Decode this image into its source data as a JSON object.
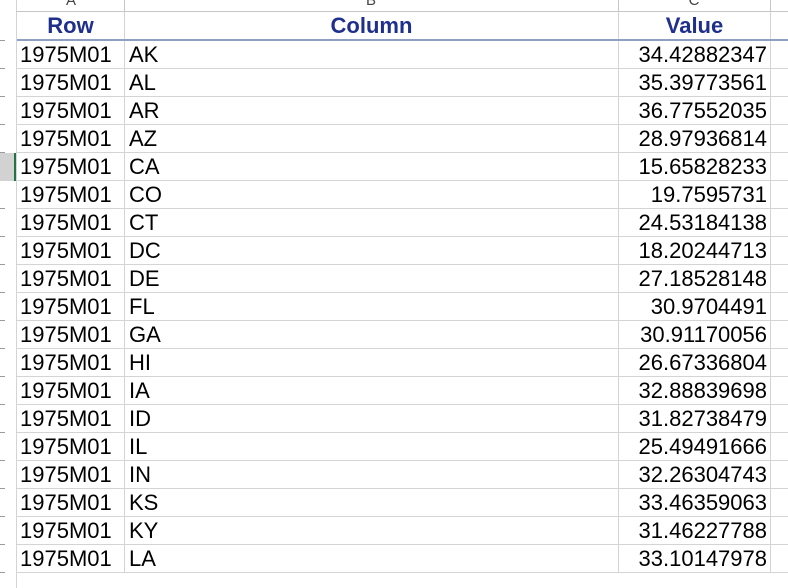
{
  "column_letters": [
    "A",
    "B",
    "C"
  ],
  "headers": {
    "row": "Row",
    "column": "Column",
    "value": "Value"
  },
  "rows": [
    {
      "row": "1975M01",
      "column": "AK",
      "value": "34.42882347"
    },
    {
      "row": "1975M01",
      "column": "AL",
      "value": "35.39773561"
    },
    {
      "row": "1975M01",
      "column": "AR",
      "value": "36.77552035"
    },
    {
      "row": "1975M01",
      "column": "AZ",
      "value": "28.97936814"
    },
    {
      "row": "1975M01",
      "column": "CA",
      "value": "15.65828233"
    },
    {
      "row": "1975M01",
      "column": "CO",
      "value": "19.7595731"
    },
    {
      "row": "1975M01",
      "column": "CT",
      "value": "24.53184138"
    },
    {
      "row": "1975M01",
      "column": "DC",
      "value": "18.20244713"
    },
    {
      "row": "1975M01",
      "column": "DE",
      "value": "27.18528148"
    },
    {
      "row": "1975M01",
      "column": "FL",
      "value": "30.9704491"
    },
    {
      "row": "1975M01",
      "column": "GA",
      "value": "30.91170056"
    },
    {
      "row": "1975M01",
      "column": "HI",
      "value": "26.67336804"
    },
    {
      "row": "1975M01",
      "column": "IA",
      "value": "32.88839698"
    },
    {
      "row": "1975M01",
      "column": "ID",
      "value": "31.82738479"
    },
    {
      "row": "1975M01",
      "column": "IL",
      "value": "25.49491666"
    },
    {
      "row": "1975M01",
      "column": "IN",
      "value": "32.26304743"
    },
    {
      "row": "1975M01",
      "column": "KS",
      "value": "33.46359063"
    },
    {
      "row": "1975M01",
      "column": "KY",
      "value": "31.46227788"
    },
    {
      "row": "1975M01",
      "column": "LA",
      "value": "33.10147978"
    }
  ],
  "selected_row_index": 4,
  "colors": {
    "header_text": "#1f2f8c",
    "selection_accent": "#217346"
  }
}
